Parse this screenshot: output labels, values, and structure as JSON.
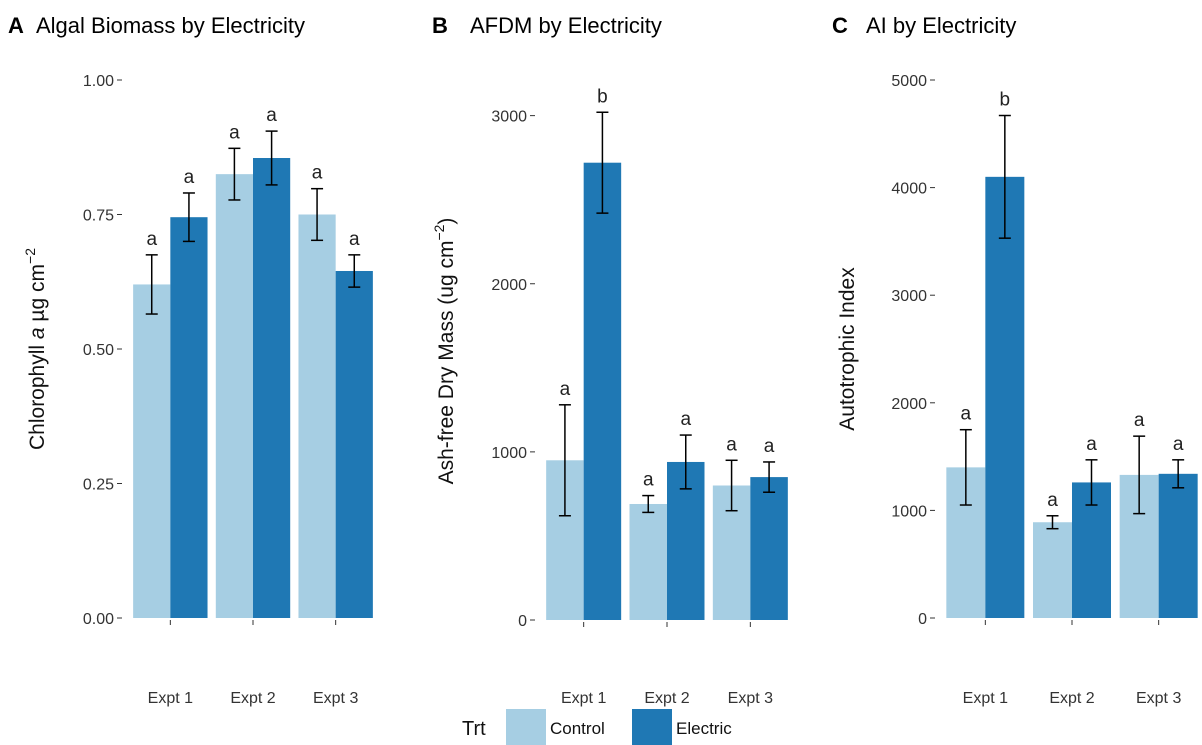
{
  "colors": {
    "control": "#a6cee3",
    "electric": "#1f78b4",
    "error_bar": "#000000",
    "tick": "#333333"
  },
  "legend": {
    "title": "Trt",
    "items": [
      "Control",
      "Electric"
    ],
    "position": "bottom"
  },
  "chart_data": [
    {
      "type": "bar",
      "tag": "A",
      "title": "Algal Biomass by Electricity",
      "ylabel_parts": [
        "Chlorophyll ",
        "a",
        " µg cm",
        "−2"
      ],
      "xlabel": "",
      "categories": [
        "Expt 1",
        "Expt 2",
        "Expt 3"
      ],
      "ylim": [
        0,
        1.0
      ],
      "yticks": [
        0,
        0.25,
        0.5,
        0.75,
        1.0
      ],
      "ytick_labels": [
        "0.00",
        "0.25",
        "0.50",
        "0.75",
        "1.00"
      ],
      "grid": false,
      "series": [
        {
          "name": "Control",
          "values": [
            0.62,
            0.825,
            0.75
          ],
          "err": [
            0.055,
            0.048,
            0.048
          ],
          "labels": [
            "a",
            "a",
            "a"
          ]
        },
        {
          "name": "Electric",
          "values": [
            0.745,
            0.855,
            0.645
          ],
          "err": [
            0.045,
            0.05,
            0.03
          ],
          "labels": [
            "a",
            "a",
            "a"
          ]
        }
      ]
    },
    {
      "type": "bar",
      "tag": "B",
      "title": "AFDM by Electricity",
      "ylabel_parts": [
        "Ash-free Dry Mass (ug cm",
        "−2",
        ")"
      ],
      "xlabel": "",
      "categories": [
        "Expt 1",
        "Expt 2",
        "Expt 3"
      ],
      "ylim": [
        0,
        3200
      ],
      "yticks": [
        0,
        1000,
        2000,
        3000
      ],
      "ytick_labels": [
        "0",
        "1000",
        "2000",
        "3000"
      ],
      "grid": false,
      "series": [
        {
          "name": "Control",
          "values": [
            950,
            690,
            800
          ],
          "err": [
            330,
            50,
            150
          ],
          "labels": [
            "a",
            "a",
            "a"
          ]
        },
        {
          "name": "Electric",
          "values": [
            2720,
            940,
            850
          ],
          "err": [
            300,
            160,
            90
          ],
          "labels": [
            "b",
            "a",
            "a"
          ]
        }
      ]
    },
    {
      "type": "bar",
      "tag": "C",
      "title": "AI by Electricity",
      "ylabel_parts": [
        "Autotrophic Index"
      ],
      "xlabel": "",
      "categories": [
        "Expt 1",
        "Expt 2",
        "Expt 3"
      ],
      "ylim": [
        0,
        5000
      ],
      "yticks": [
        0,
        1000,
        2000,
        3000,
        4000,
        5000
      ],
      "ytick_labels": [
        "0",
        "1000",
        "2000",
        "3000",
        "4000",
        "5000"
      ],
      "grid": false,
      "series": [
        {
          "name": "Control",
          "values": [
            1400,
            890,
            1330
          ],
          "err": [
            350,
            60,
            360
          ],
          "labels": [
            "a",
            "a",
            "a"
          ]
        },
        {
          "name": "Electric",
          "values": [
            4100,
            1260,
            1340
          ],
          "err": [
            570,
            210,
            130
          ],
          "labels": [
            "b",
            "a",
            "a"
          ]
        }
      ]
    }
  ]
}
